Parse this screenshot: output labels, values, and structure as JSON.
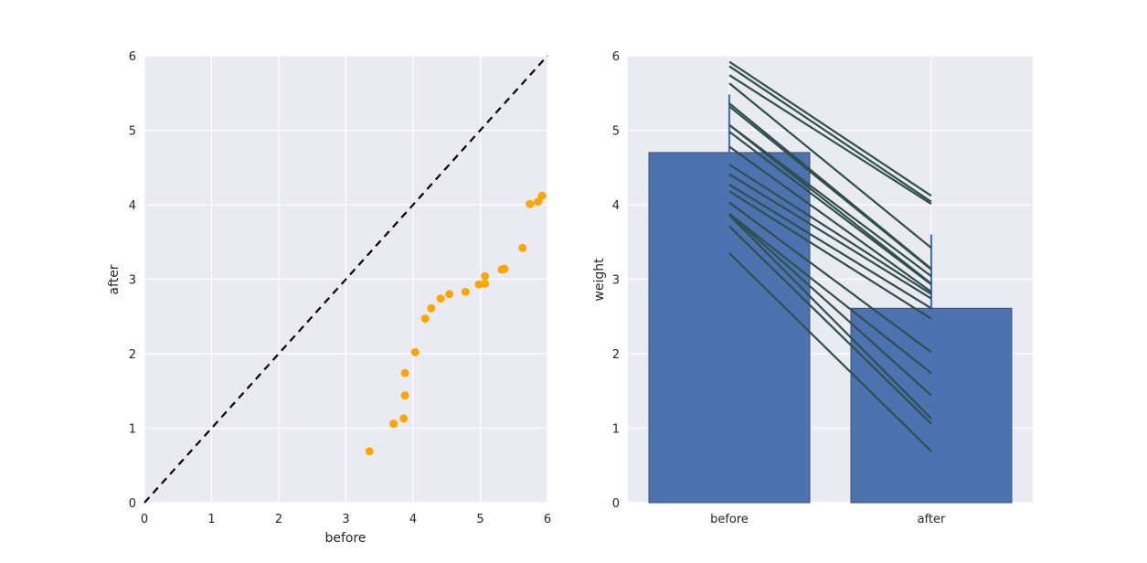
{
  "colors": {
    "background": "#eaeaf2",
    "grid": "#ffffff",
    "scatter": "#ffa500",
    "bar": "#4c72b0",
    "bar_edge": "#3d4f6b",
    "pair_line": "#2f4f4f",
    "identity_line": "#000000"
  },
  "chart_data": [
    {
      "type": "scatter",
      "xlabel": "before",
      "ylabel": "after",
      "xlim": [
        0,
        6
      ],
      "ylim": [
        0,
        6
      ],
      "xticks": [
        "0",
        "1",
        "2",
        "3",
        "4",
        "5",
        "6"
      ],
      "yticks": [
        "0",
        "1",
        "2",
        "3",
        "4",
        "5",
        "6"
      ],
      "grid": true,
      "reference_line": {
        "style": "dashed",
        "from": [
          0,
          0
        ],
        "to": [
          6,
          6
        ]
      },
      "points": [
        [
          3.35,
          0.69
        ],
        [
          3.71,
          1.06
        ],
        [
          3.86,
          1.13
        ],
        [
          3.88,
          1.44
        ],
        [
          3.88,
          1.74
        ],
        [
          4.03,
          2.02
        ],
        [
          4.18,
          2.47
        ],
        [
          4.27,
          2.61
        ],
        [
          4.41,
          2.74
        ],
        [
          4.54,
          2.8
        ],
        [
          4.78,
          2.83
        ],
        [
          4.98,
          2.93
        ],
        [
          5.07,
          2.94
        ],
        [
          5.07,
          3.04
        ],
        [
          5.32,
          3.13
        ],
        [
          5.36,
          3.14
        ],
        [
          5.63,
          3.42
        ],
        [
          5.74,
          4.01
        ],
        [
          5.86,
          4.04
        ],
        [
          5.92,
          4.12
        ]
      ]
    },
    {
      "type": "bar",
      "categories": [
        "before",
        "after"
      ],
      "values": [
        4.7,
        2.61
      ],
      "ci_upper": [
        5.48,
        3.6
      ],
      "ylabel": "weight",
      "xlabel": "",
      "ylim": [
        0,
        6
      ],
      "yticks": [
        "0",
        "1",
        "2",
        "3",
        "4",
        "5",
        "6"
      ],
      "grid": true,
      "paired_lines": "uses scatter points: before -> after"
    }
  ]
}
